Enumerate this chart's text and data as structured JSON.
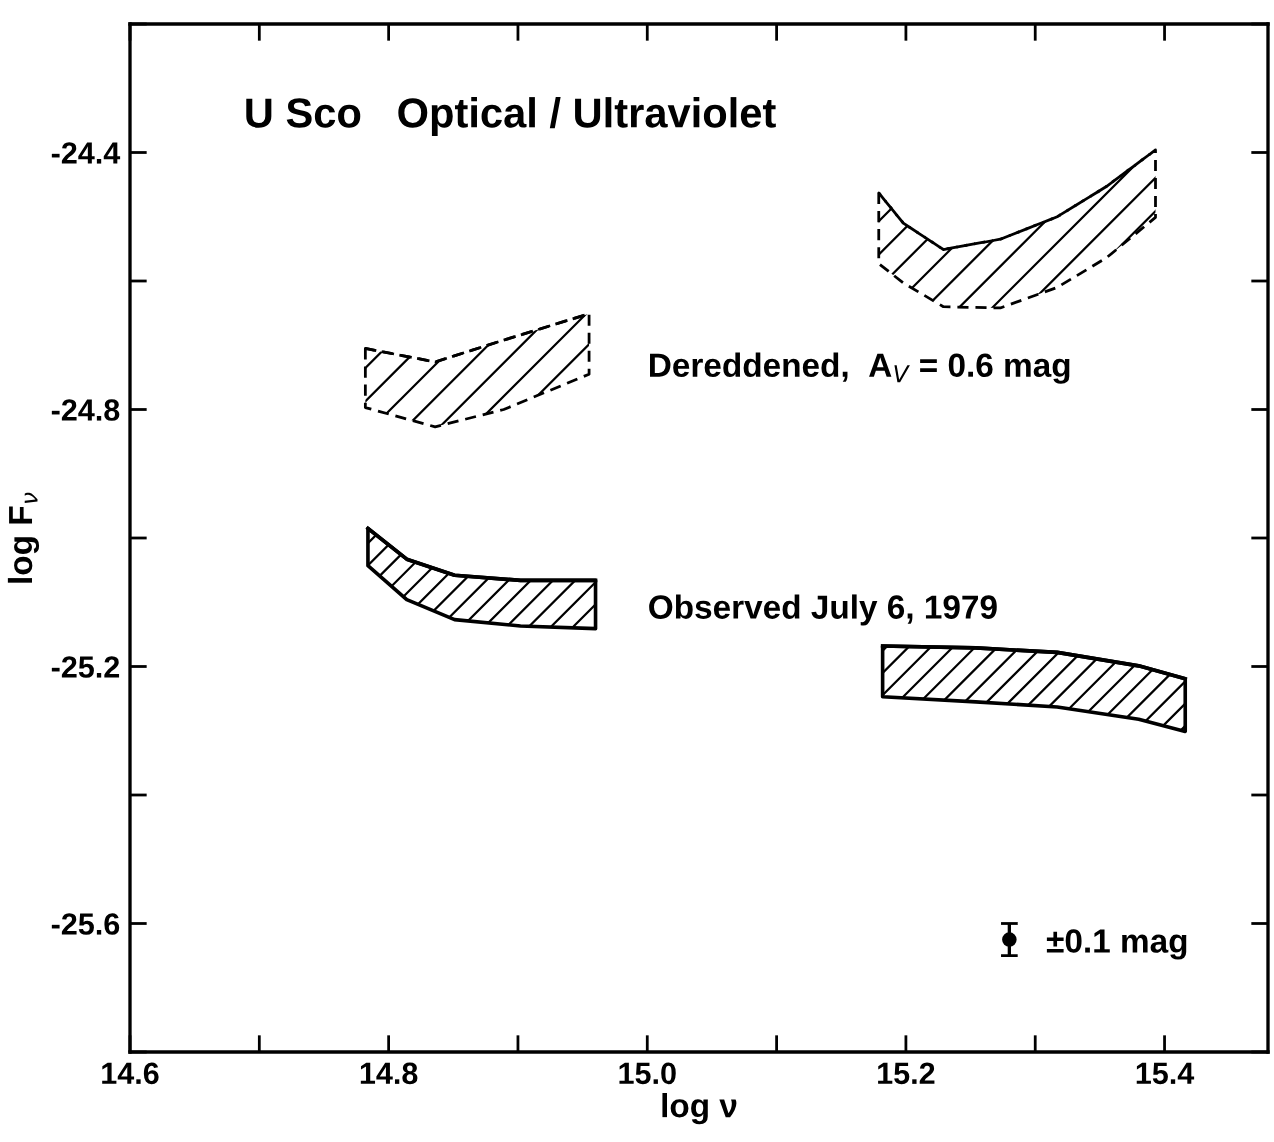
{
  "chart_data": {
    "type": "line",
    "title": "U Sco   Optical / Ultraviolet",
    "xlabel": "log ν",
    "ylabel": "log F$_{ν}$",
    "xlim": [
      14.6,
      15.48
    ],
    "ylim": [
      -25.8,
      -24.2
    ],
    "xticks": [
      14.6,
      {
        "value": 14.7,
        "label": null
      },
      14.8,
      {
        "value": 14.9,
        "label": null
      },
      {
        "value": 15.0,
        "label": "15.0"
      },
      {
        "value": 15.1,
        "label": null
      },
      15.2,
      {
        "value": 15.3,
        "label": null
      },
      15.4
    ],
    "yticks": [
      {
        "value": -25.8,
        "label": null
      },
      -25.6,
      {
        "value": -25.4,
        "label": null
      },
      -25.2,
      {
        "value": -25.0,
        "label": null
      },
      -24.8,
      {
        "value": -24.6,
        "label": null
      },
      -24.4,
      {
        "value": -24.2,
        "label": null
      }
    ],
    "grid": false,
    "legend": false,
    "series": [
      {
        "color": "#000000",
        "line_style": "dashed",
        "x": [
          14.782,
          14.836,
          14.889,
          14.955
        ],
        "values": [
          -24.705,
          -24.726,
          -24.692,
          -24.651
        ],
        "upper": [
          -24.705,
          -24.726,
          -24.692,
          -24.651
        ],
        "lower": [
          -24.797,
          -24.827,
          -24.8,
          -24.745
        ]
      },
      {
        "color": "#000000",
        "line_style": "dashed",
        "x": [
          15.179,
          15.198,
          15.229,
          15.273,
          15.317,
          15.355,
          15.393
        ],
        "values": [
          -24.463,
          -24.51,
          -24.551,
          -24.535,
          -24.5,
          -24.453,
          -24.396
        ],
        "upper": [
          -24.463,
          -24.51,
          -24.551,
          -24.535,
          -24.5,
          -24.453,
          -24.396
        ],
        "lower": [
          -24.573,
          -24.603,
          -24.64,
          -24.642,
          -24.61,
          -24.564,
          -24.501
        ]
      },
      {
        "color": "#000000",
        "line_style": "solid",
        "x": [
          14.784,
          14.814,
          14.851,
          14.902,
          14.96
        ],
        "values": [
          -24.985,
          -25.033,
          -25.058,
          -25.066,
          -25.066
        ],
        "upper": [
          -24.985,
          -25.033,
          -25.058,
          -25.066,
          -25.066
        ],
        "lower": [
          -25.043,
          -25.096,
          -25.127,
          -25.137,
          -25.141
        ]
      },
      {
        "color": "#000000",
        "line_style": "solid",
        "x": [
          15.182,
          15.254,
          15.317,
          15.38,
          15.416
        ],
        "values": [
          -25.168,
          -25.171,
          -25.178,
          -25.199,
          -25.219
        ],
        "upper": [
          -25.168,
          -25.171,
          -25.178,
          -25.199,
          -25.219
        ],
        "lower": [
          -25.247,
          -25.255,
          -25.263,
          -25.282,
          -25.301
        ]
      },
      {
        "type": "scatter",
        "color": "#000000",
        "marker": "circle",
        "x": [
          15.28
        ],
        "values": [
          -25.625
        ],
        "errors": [
          0.025
        ]
      }
    ],
    "annotations": [
      "Dereddened,  A$_{V}$ = 0.6 mag",
      "Observed July 6, 1979",
      "±0.1 mag"
    ]
  }
}
